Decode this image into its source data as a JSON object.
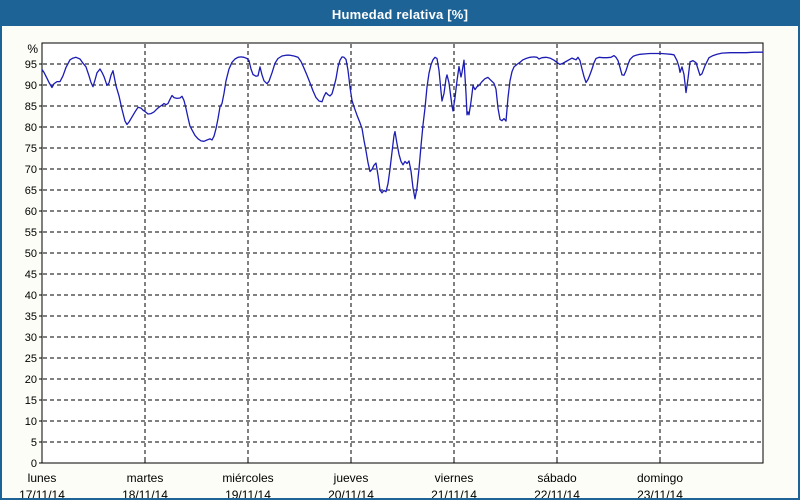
{
  "window": {
    "title": "Humedad relativa [%]"
  },
  "colors": {
    "titlebar_bg": "#1e6396",
    "titlebar_text": "#ffffff",
    "frame_border": "#1e6396",
    "page_bg": "#fcfdf6",
    "plot_bg": "#ffffff",
    "grid": "#000000",
    "axis": "#000000",
    "line": "#1c1cb4"
  },
  "chart_data": {
    "type": "line",
    "title": "Humedad relativa [%]",
    "ylabel_unit": "%",
    "ylim": [
      0,
      100
    ],
    "y_ticks": [
      0,
      5,
      10,
      15,
      20,
      25,
      30,
      35,
      40,
      45,
      50,
      55,
      60,
      65,
      70,
      75,
      80,
      85,
      90,
      95
    ],
    "grid": "dashed",
    "legend": "none",
    "x_days": [
      {
        "name": "lunes",
        "date": "17/11/14"
      },
      {
        "name": "martes",
        "date": "18/11/14"
      },
      {
        "name": "miércoles",
        "date": "19/11/14"
      },
      {
        "name": "jueves",
        "date": "20/11/14"
      },
      {
        "name": "viernes",
        "date": "21/11/14"
      },
      {
        "name": "sábado",
        "date": "22/11/14"
      },
      {
        "name": "domingo",
        "date": "23/11/14"
      }
    ],
    "series": [
      {
        "name": "Humedad relativa",
        "note": "points are [screen_x_px, humidity_percent]; x axis spans lunes 17/11/14 (x=40) to end of domingo 23/11/14 (x=761), 103 px per day",
        "points": [
          [
            40,
            93.7
          ],
          [
            42,
            93.0
          ],
          [
            45,
            91.6
          ],
          [
            47,
            90.6
          ],
          [
            50,
            89.4
          ],
          [
            52,
            90.3
          ],
          [
            55,
            90.8
          ],
          [
            58,
            90.8
          ],
          [
            61,
            92.2
          ],
          [
            64,
            94.2
          ],
          [
            68,
            96.0
          ],
          [
            71,
            96.4
          ],
          [
            74,
            96.6
          ],
          [
            78,
            96.2
          ],
          [
            81,
            95.2
          ],
          [
            84,
            94.3
          ],
          [
            87,
            92.2
          ],
          [
            89,
            90.6
          ],
          [
            91,
            89.6
          ],
          [
            93,
            91.2
          ],
          [
            95,
            92.9
          ],
          [
            98,
            93.8
          ],
          [
            100,
            93.0
          ],
          [
            102,
            92.0
          ],
          [
            105,
            89.9
          ],
          [
            107,
            90.5
          ],
          [
            109,
            92.3
          ],
          [
            111,
            93.4
          ],
          [
            113,
            91.0
          ],
          [
            114,
            89.8
          ],
          [
            117,
            87.4
          ],
          [
            120,
            84.2
          ],
          [
            123,
            81.4
          ],
          [
            125,
            80.6
          ],
          [
            127,
            81.2
          ],
          [
            130,
            82.4
          ],
          [
            133,
            83.6
          ],
          [
            136,
            84.7
          ],
          [
            139,
            84.5
          ],
          [
            141,
            84.0
          ],
          [
            143,
            83.7
          ],
          [
            146,
            83.1
          ],
          [
            149,
            83.2
          ],
          [
            152,
            83.6
          ],
          [
            155,
            84.3
          ],
          [
            158,
            84.9
          ],
          [
            160,
            85.2
          ],
          [
            162,
            85.6
          ],
          [
            164,
            85.3
          ],
          [
            166,
            85.6
          ],
          [
            168,
            86.6
          ],
          [
            170,
            87.5
          ],
          [
            172,
            87.0
          ],
          [
            175,
            86.8
          ],
          [
            178,
            86.9
          ],
          [
            180,
            87.3
          ],
          [
            182,
            86.3
          ],
          [
            184,
            84.4
          ],
          [
            186,
            82.2
          ],
          [
            188,
            80.2
          ],
          [
            190,
            79.3
          ],
          [
            193,
            78.0
          ],
          [
            196,
            77.2
          ],
          [
            199,
            76.7
          ],
          [
            202,
            76.6
          ],
          [
            205,
            76.9
          ],
          [
            208,
            77.2
          ],
          [
            210,
            76.9
          ],
          [
            212,
            77.8
          ],
          [
            214,
            79.6
          ],
          [
            216,
            82.0
          ],
          [
            218,
            84.8
          ],
          [
            220,
            85.6
          ],
          [
            222,
            88.0
          ],
          [
            224,
            91.0
          ],
          [
            227,
            93.8
          ],
          [
            230,
            95.4
          ],
          [
            233,
            96.2
          ],
          [
            236,
            96.6
          ],
          [
            239,
            96.7
          ],
          [
            242,
            96.6
          ],
          [
            245,
            96.3
          ],
          [
            247,
            95.8
          ],
          [
            249,
            93.8
          ],
          [
            251,
            92.5
          ],
          [
            254,
            92.1
          ],
          [
            256,
            92.2
          ],
          [
            258,
            94.3
          ],
          [
            260,
            92.4
          ],
          [
            262,
            91.0
          ],
          [
            265,
            90.3
          ],
          [
            267,
            90.9
          ],
          [
            270,
            92.9
          ],
          [
            273,
            95.2
          ],
          [
            276,
            96.3
          ],
          [
            280,
            96.9
          ],
          [
            284,
            97.1
          ],
          [
            288,
            97.1
          ],
          [
            292,
            96.9
          ],
          [
            296,
            96.6
          ],
          [
            299,
            95.6
          ],
          [
            302,
            94.0
          ],
          [
            305,
            92.3
          ],
          [
            308,
            90.5
          ],
          [
            311,
            88.6
          ],
          [
            314,
            87.0
          ],
          [
            317,
            86.2
          ],
          [
            320,
            86.0
          ],
          [
            322,
            87.3
          ],
          [
            324,
            88.2
          ],
          [
            326,
            87.7
          ],
          [
            328,
            87.4
          ],
          [
            330,
            87.9
          ],
          [
            332,
            89.6
          ],
          [
            334,
            91.5
          ],
          [
            336,
            94.3
          ],
          [
            338,
            95.9
          ],
          [
            340,
            96.7
          ],
          [
            342,
            96.6
          ],
          [
            344,
            96.1
          ],
          [
            346,
            93.5
          ],
          [
            348,
            89.5
          ],
          [
            350,
            86.3
          ],
          [
            352,
            84.8
          ],
          [
            355,
            82.8
          ],
          [
            358,
            81.0
          ],
          [
            360,
            79.7
          ],
          [
            362,
            76.8
          ],
          [
            364,
            74.3
          ],
          [
            366,
            71.5
          ],
          [
            368,
            69.4
          ],
          [
            370,
            69.9
          ],
          [
            372,
            70.9
          ],
          [
            374,
            71.4
          ],
          [
            376,
            68.5
          ],
          [
            378,
            65.0
          ],
          [
            380,
            64.3
          ],
          [
            382,
            64.9
          ],
          [
            384,
            64.6
          ],
          [
            386,
            66.5
          ],
          [
            388,
            70.0
          ],
          [
            390,
            74.0
          ],
          [
            392,
            78.0
          ],
          [
            393,
            78.9
          ],
          [
            395,
            76.0
          ],
          [
            397,
            73.5
          ],
          [
            399,
            71.8
          ],
          [
            401,
            71.0
          ],
          [
            403,
            71.8
          ],
          [
            405,
            71.3
          ],
          [
            407,
            71.9
          ],
          [
            409,
            69.5
          ],
          [
            411,
            65.5
          ],
          [
            413,
            62.9
          ],
          [
            415,
            65.5
          ],
          [
            417,
            70.0
          ],
          [
            419,
            75.5
          ],
          [
            421,
            80.5
          ],
          [
            423,
            84.5
          ],
          [
            425,
            89.5
          ],
          [
            427,
            92.8
          ],
          [
            429,
            94.8
          ],
          [
            431,
            96.0
          ],
          [
            433,
            96.6
          ],
          [
            435,
            96.3
          ],
          [
            437,
            93.5
          ],
          [
            439,
            88.5
          ],
          [
            440,
            86.2
          ],
          [
            442,
            88.0
          ],
          [
            444,
            91.5
          ],
          [
            445,
            92.4
          ],
          [
            447,
            90.5
          ],
          [
            448,
            88.7
          ],
          [
            450,
            85.0
          ],
          [
            451,
            83.8
          ],
          [
            453,
            87.0
          ],
          [
            455,
            91.0
          ],
          [
            457,
            94.4
          ],
          [
            459,
            91.9
          ],
          [
            460,
            93.0
          ],
          [
            462,
            95.9
          ],
          [
            464,
            88.0
          ],
          [
            465,
            82.9
          ],
          [
            466,
            83.6
          ],
          [
            467,
            82.9
          ],
          [
            469,
            86.0
          ],
          [
            471,
            89.8
          ],
          [
            473,
            88.9
          ],
          [
            475,
            89.6
          ],
          [
            477,
            89.9
          ],
          [
            480,
            90.8
          ],
          [
            483,
            91.5
          ],
          [
            486,
            91.8
          ],
          [
            489,
            91.1
          ],
          [
            492,
            90.4
          ],
          [
            494,
            89.0
          ],
          [
            496,
            84.5
          ],
          [
            498,
            81.8
          ],
          [
            500,
            81.5
          ],
          [
            502,
            82.0
          ],
          [
            504,
            81.4
          ],
          [
            506,
            87.0
          ],
          [
            508,
            91.0
          ],
          [
            510,
            93.2
          ],
          [
            512,
            94.3
          ],
          [
            515,
            94.9
          ],
          [
            518,
            95.4
          ],
          [
            521,
            96.0
          ],
          [
            524,
            96.3
          ],
          [
            528,
            96.6
          ],
          [
            532,
            96.7
          ],
          [
            535,
            96.6
          ],
          [
            537,
            96.2
          ],
          [
            540,
            96.5
          ],
          [
            544,
            96.6
          ],
          [
            548,
            96.4
          ],
          [
            552,
            95.9
          ],
          [
            556,
            95.2
          ],
          [
            558,
            94.9
          ],
          [
            561,
            95.2
          ],
          [
            564,
            95.6
          ],
          [
            567,
            96.0
          ],
          [
            570,
            96.4
          ],
          [
            572,
            96.2
          ],
          [
            574,
            96.0
          ],
          [
            576,
            96.6
          ],
          [
            578,
            95.8
          ],
          [
            580,
            93.8
          ],
          [
            582,
            92.0
          ],
          [
            584,
            90.6
          ],
          [
            586,
            91.3
          ],
          [
            588,
            92.5
          ],
          [
            590,
            93.8
          ],
          [
            592,
            95.3
          ],
          [
            594,
            96.3
          ],
          [
            597,
            96.6
          ],
          [
            601,
            96.5
          ],
          [
            605,
            96.5
          ],
          [
            609,
            96.6
          ],
          [
            612,
            97.0
          ],
          [
            614,
            96.6
          ],
          [
            616,
            95.8
          ],
          [
            618,
            94.2
          ],
          [
            620,
            92.4
          ],
          [
            622,
            92.3
          ],
          [
            624,
            93.4
          ],
          [
            626,
            94.9
          ],
          [
            628,
            96.1
          ],
          [
            631,
            96.8
          ],
          [
            634,
            97.1
          ],
          [
            638,
            97.3
          ],
          [
            643,
            97.4
          ],
          [
            648,
            97.5
          ],
          [
            653,
            97.5
          ],
          [
            659,
            97.5
          ],
          [
            664,
            97.4
          ],
          [
            669,
            97.3
          ],
          [
            672,
            97.2
          ],
          [
            675,
            95.8
          ],
          [
            677,
            94.3
          ],
          [
            678,
            93.0
          ],
          [
            680,
            94.3
          ],
          [
            682,
            92.5
          ],
          [
            684,
            88.2
          ],
          [
            686,
            91.5
          ],
          [
            688,
            95.5
          ],
          [
            691,
            95.8
          ],
          [
            694,
            95.3
          ],
          [
            696,
            93.8
          ],
          [
            698,
            92.3
          ],
          [
            700,
            92.7
          ],
          [
            703,
            94.6
          ],
          [
            707,
            96.5
          ],
          [
            711,
            97.0
          ],
          [
            715,
            97.3
          ],
          [
            720,
            97.6
          ],
          [
            728,
            97.7
          ],
          [
            736,
            97.7
          ],
          [
            744,
            97.7
          ],
          [
            752,
            97.8
          ],
          [
            761,
            97.8
          ]
        ]
      }
    ]
  }
}
